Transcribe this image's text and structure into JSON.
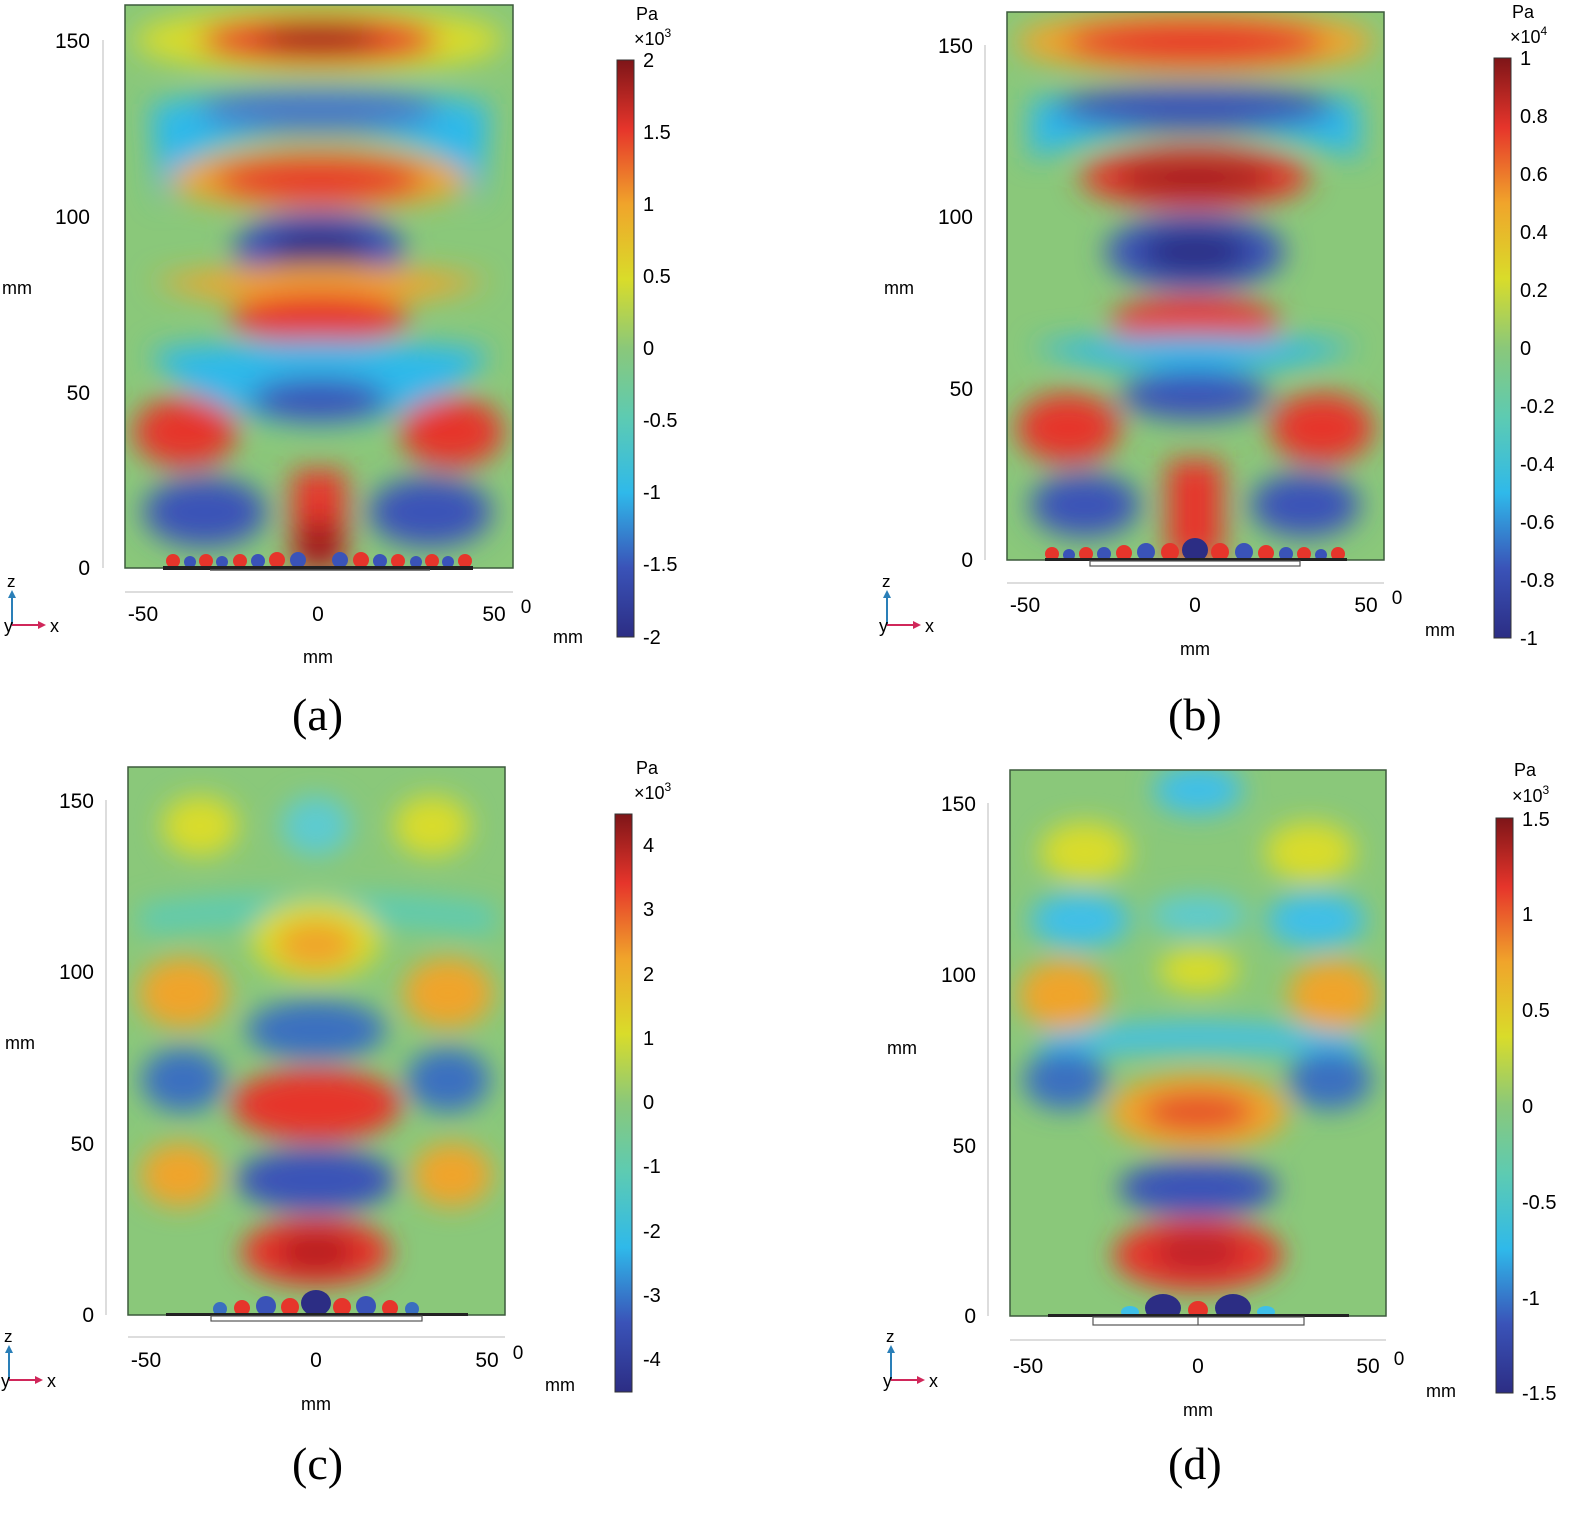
{
  "panels": [
    {
      "id": "a",
      "caption": "(a)",
      "chart_data": {
        "type": "heatmap",
        "title": "",
        "xlabel": "mm",
        "ylabel": "mm",
        "xlim": [
          -55,
          55
        ],
        "ylim": [
          0,
          160
        ],
        "x_ticks": [
          "-50",
          "0",
          "50"
        ],
        "y_ticks": [
          "0",
          "50",
          "100",
          "150"
        ],
        "extra_tick": "0",
        "colorbar": {
          "unit": "Pa",
          "scale": "×10",
          "exponent": "3",
          "range": [
            -2,
            2
          ],
          "ticks": [
            "2",
            "1.5",
            "1",
            "0.5",
            "0",
            "-0.5",
            "-1",
            "-1.5",
            "-2"
          ]
        },
        "field": [
          {
            "x": 0,
            "z": 150,
            "value": 1.9
          },
          {
            "x": 0,
            "z": 130,
            "value": -1.0
          },
          {
            "x": 0,
            "z": 110,
            "value": 1.7
          },
          {
            "x": 0,
            "z": 90,
            "value": -1.9
          },
          {
            "x": 0,
            "z": 70,
            "value": 1.6
          },
          {
            "x": 0,
            "z": 47,
            "value": -1.4
          },
          {
            "x": -38,
            "z": 38,
            "value": 1.7
          },
          {
            "x": 38,
            "z": 38,
            "value": 1.7
          },
          {
            "x": -30,
            "z": 15,
            "value": -1.7
          },
          {
            "x": 30,
            "z": 15,
            "value": -1.7
          },
          {
            "x": 0,
            "z": 18,
            "value": 1.6
          }
        ]
      }
    },
    {
      "id": "b",
      "caption": "(b)",
      "chart_data": {
        "type": "heatmap",
        "title": "",
        "xlabel": "mm",
        "ylabel": "mm",
        "xlim": [
          -55,
          55
        ],
        "ylim": [
          0,
          160
        ],
        "x_ticks": [
          "-50",
          "0",
          "50"
        ],
        "y_ticks": [
          "0",
          "50",
          "100",
          "150"
        ],
        "extra_tick": "0",
        "colorbar": {
          "unit": "Pa",
          "scale": "×10",
          "exponent": "4",
          "range": [
            -1,
            1
          ],
          "ticks": [
            "1",
            "0.8",
            "0.6",
            "0.4",
            "0.2",
            "0",
            "-0.2",
            "-0.4",
            "-0.6",
            "-0.8",
            "-1"
          ]
        },
        "field": [
          {
            "x": 0,
            "z": 150,
            "value": 0.85
          },
          {
            "x": 0,
            "z": 132,
            "value": -0.7
          },
          {
            "x": 0,
            "z": 110,
            "value": 0.95
          },
          {
            "x": 0,
            "z": 90,
            "value": -0.95
          },
          {
            "x": 0,
            "z": 70,
            "value": 0.8
          },
          {
            "x": 0,
            "z": 48,
            "value": -0.7
          },
          {
            "x": -38,
            "z": 38,
            "value": 0.85
          },
          {
            "x": 38,
            "z": 38,
            "value": 0.85
          },
          {
            "x": -30,
            "z": 16,
            "value": -0.85
          },
          {
            "x": 30,
            "z": 16,
            "value": -0.85
          },
          {
            "x": 0,
            "z": 20,
            "value": 0.75
          }
        ]
      }
    },
    {
      "id": "c",
      "caption": "(c)",
      "chart_data": {
        "type": "heatmap",
        "title": "",
        "xlabel": "mm",
        "ylabel": "mm",
        "xlim": [
          -55,
          55
        ],
        "ylim": [
          0,
          160
        ],
        "x_ticks": [
          "-50",
          "0",
          "50"
        ],
        "y_ticks": [
          "0",
          "50",
          "100",
          "150"
        ],
        "extra_tick": "0",
        "colorbar": {
          "unit": "Pa",
          "scale": "×10",
          "exponent": "3",
          "range": [
            -4.5,
            4.5
          ],
          "ticks": [
            "4",
            "3",
            "2",
            "1",
            "0",
            "-1",
            "-2",
            "-3",
            "-4"
          ]
        },
        "field": [
          {
            "x": -34,
            "z": 140,
            "value": 1.0
          },
          {
            "x": 34,
            "z": 140,
            "value": 1.0
          },
          {
            "x": 0,
            "z": 140,
            "value": -1.3
          },
          {
            "x": 0,
            "z": 108,
            "value": 2.0
          },
          {
            "x": -38,
            "z": 93,
            "value": 2.0
          },
          {
            "x": 38,
            "z": 93,
            "value": 2.0
          },
          {
            "x": 0,
            "z": 83,
            "value": -2.8
          },
          {
            "x": -38,
            "z": 68,
            "value": -2.4
          },
          {
            "x": 38,
            "z": 68,
            "value": -2.4
          },
          {
            "x": 0,
            "z": 60,
            "value": 4.0
          },
          {
            "x": -40,
            "z": 43,
            "value": 1.8
          },
          {
            "x": 40,
            "z": 43,
            "value": 1.8
          },
          {
            "x": 0,
            "z": 37,
            "value": -3.6
          },
          {
            "x": 0,
            "z": 17,
            "value": 4.2
          }
        ]
      }
    },
    {
      "id": "d",
      "caption": "(d)",
      "chart_data": {
        "type": "heatmap",
        "title": "",
        "xlabel": "mm",
        "ylabel": "mm",
        "xlim": [
          -55,
          55
        ],
        "ylim": [
          0,
          160
        ],
        "x_ticks": [
          "-50",
          "0",
          "50"
        ],
        "y_ticks": [
          "0",
          "50",
          "100",
          "150"
        ],
        "extra_tick": "0",
        "colorbar": {
          "unit": "Pa",
          "scale": "×10",
          "exponent": "3",
          "range": [
            -1.5,
            1.5
          ],
          "ticks": [
            "1.5",
            "1",
            "0.5",
            "0",
            "-0.5",
            "-1",
            "-1.5"
          ]
        },
        "field": [
          {
            "x": 0,
            "z": 150,
            "value": -0.6
          },
          {
            "x": -32,
            "z": 136,
            "value": 0.4
          },
          {
            "x": 32,
            "z": 136,
            "value": 0.4
          },
          {
            "x": -34,
            "z": 117,
            "value": -0.6
          },
          {
            "x": 34,
            "z": 117,
            "value": -0.6
          },
          {
            "x": 0,
            "z": 115,
            "value": -0.5
          },
          {
            "x": -38,
            "z": 93,
            "value": 0.7
          },
          {
            "x": 38,
            "z": 93,
            "value": 0.7
          },
          {
            "x": 0,
            "z": 100,
            "value": 0.3
          },
          {
            "x": -38,
            "z": 68,
            "value": -0.8
          },
          {
            "x": 38,
            "z": 68,
            "value": -0.8
          },
          {
            "x": 0,
            "z": 55,
            "value": 0.9
          },
          {
            "x": 0,
            "z": 37,
            "value": -1.1
          },
          {
            "x": 0,
            "z": 17,
            "value": 1.3
          }
        ]
      }
    }
  ],
  "axis_triad": {
    "z": "z",
    "y": "y",
    "x": "x"
  },
  "colors": {
    "axis_x": "#d0275a",
    "axis_z": "#2a7fb8",
    "frame": "#3c5a3c",
    "neutral": "#8ac87a"
  }
}
